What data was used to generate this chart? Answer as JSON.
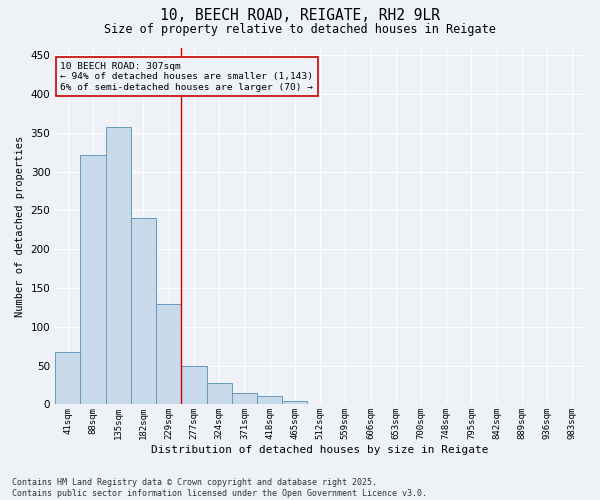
{
  "title_line1": "10, BEECH ROAD, REIGATE, RH2 9LR",
  "title_line2": "Size of property relative to detached houses in Reigate",
  "xlabel": "Distribution of detached houses by size in Reigate",
  "ylabel": "Number of detached properties",
  "bar_color": "#c8d9ea",
  "bar_edge_color": "#6699bb",
  "categories": [
    "41sqm",
    "88sqm",
    "135sqm",
    "182sqm",
    "229sqm",
    "277sqm",
    "324sqm",
    "371sqm",
    "418sqm",
    "465sqm",
    "512sqm",
    "559sqm",
    "606sqm",
    "653sqm",
    "700sqm",
    "748sqm",
    "795sqm",
    "842sqm",
    "889sqm",
    "936sqm",
    "983sqm"
  ],
  "values": [
    67,
    321,
    358,
    240,
    130,
    50,
    27,
    15,
    11,
    4,
    1,
    0,
    0,
    0,
    0,
    1,
    0,
    0,
    0,
    0,
    0
  ],
  "marker_bar_index": 5,
  "marker_label": "10 BEECH ROAD: 307sqm",
  "marker_sublabel1": "← 94% of detached houses are smaller (1,143)",
  "marker_sublabel2": "6% of semi-detached houses are larger (70) →",
  "marker_line_color": "#cc0000",
  "annotation_box_color": "#cc0000",
  "ylim": [
    0,
    460
  ],
  "yticks": [
    0,
    50,
    100,
    150,
    200,
    250,
    300,
    350,
    400,
    450
  ],
  "background_color": "#eef2f7",
  "grid_color": "#ffffff",
  "footer_line1": "Contains HM Land Registry data © Crown copyright and database right 2025.",
  "footer_line2": "Contains public sector information licensed under the Open Government Licence v3.0."
}
